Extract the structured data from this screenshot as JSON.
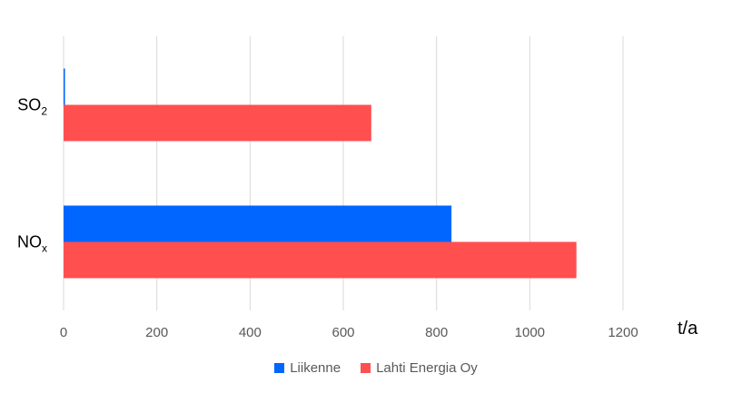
{
  "chart_data": {
    "type": "bar",
    "orientation": "horizontal",
    "categories": [
      {
        "label": "SO",
        "sub": "2"
      },
      {
        "label": "NO",
        "sub": "x"
      }
    ],
    "series": [
      {
        "name": "Liikenne",
        "color": "#0066ff",
        "values": [
          3,
          832
        ]
      },
      {
        "name": "Lahti Energia Oy",
        "color": "#ff4f4f",
        "values": [
          660,
          1100
        ]
      }
    ],
    "xlim": [
      0,
      1200
    ],
    "xticks": [
      "0",
      "200",
      "400",
      "600",
      "800",
      "1000",
      "1200"
    ],
    "xlabel": "t/a",
    "title": "",
    "grid": true,
    "legend_position": "bottom"
  }
}
